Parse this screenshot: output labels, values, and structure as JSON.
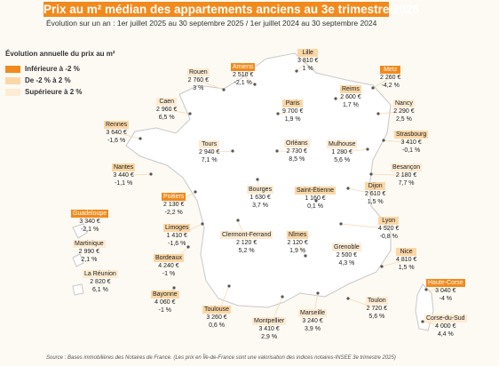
{
  "title": "Prix au m² médian des appartements anciens au 3e trimestre 2025",
  "subtitle": "Évolution sur un an : 1er juillet 2025 au 30 septembre 2025 / 1er juillet 2024 au 30 septembre 2024",
  "legend": {
    "title": "Évolution annuelle du prix au m²",
    "items": [
      {
        "label": "Inférieure à -2 %",
        "color": "#f18a1c"
      },
      {
        "label": "De -2 % à 2 %",
        "color": "#fbd7a6"
      },
      {
        "label": "Supérieure à 2 %",
        "color": "#fdebd2"
      }
    ]
  },
  "cities": [
    {
      "name": "Lille",
      "price": "3 810 €",
      "change": "1 %",
      "cat": 1
    },
    {
      "name": "Amiens",
      "price": "2 510 €",
      "change": "-2,1 %",
      "cat": 0
    },
    {
      "name": "Rouen",
      "price": "2 760 €",
      "change": "3 %",
      "cat": 2
    },
    {
      "name": "Metz",
      "price": "2 260 €",
      "change": "-4,2 %",
      "cat": 0
    },
    {
      "name": "Reims",
      "price": "2 600 €",
      "change": "1,7 %",
      "cat": 1
    },
    {
      "name": "Caen",
      "price": "2 960 €",
      "change": "6,5 %",
      "cat": 2
    },
    {
      "name": "Paris",
      "price": "9 700 €",
      "change": "1,9 %",
      "cat": 1
    },
    {
      "name": "Nancy",
      "price": "2 290 €",
      "change": "2,5 %",
      "cat": 2
    },
    {
      "name": "Rennes",
      "price": "3 640 €",
      "change": "-1,6 %",
      "cat": 1
    },
    {
      "name": "Strasbourg",
      "price": "3 410 €",
      "change": "-0,1 %",
      "cat": 1
    },
    {
      "name": "Tours",
      "price": "2 940 €",
      "change": "7,1 %",
      "cat": 2
    },
    {
      "name": "Orléans",
      "price": "2 730 €",
      "change": "8,5 %",
      "cat": 2
    },
    {
      "name": "Mulhouse",
      "price": "1 280 €",
      "change": "5,6 %",
      "cat": 2
    },
    {
      "name": "Nantes",
      "price": "3 440 €",
      "change": "-1,1 %",
      "cat": 1
    },
    {
      "name": "Besançon",
      "price": "2 180 €",
      "change": "7,7 %",
      "cat": 2
    },
    {
      "name": "Bourges",
      "price": "1 630 €",
      "change": "3,7 %",
      "cat": 2
    },
    {
      "name": "Poitiers",
      "price": "2 130 €",
      "change": "-2,2 %",
      "cat": 0
    },
    {
      "name": "Saint-Étienne",
      "price": "1 160 €",
      "change": "0,1 %",
      "cat": 1
    },
    {
      "name": "Dijon",
      "price": "2 610 €",
      "change": "1,5 %",
      "cat": 1
    },
    {
      "name": "Guadeloupe",
      "price": "3 340 €",
      "change": "-2,1 %",
      "cat": 0
    },
    {
      "name": "Limoges",
      "price": "1 410 €",
      "change": "-1,6 %",
      "cat": 1
    },
    {
      "name": "Clermont-Ferrand",
      "price": "2 120 €",
      "change": "5,2 %",
      "cat": 2
    },
    {
      "name": "Nîmes",
      "price": "2 120 €",
      "change": "1,9 %",
      "cat": 1
    },
    {
      "name": "Lyon",
      "price": "4 520 €",
      "change": "-0,8 %",
      "cat": 1
    },
    {
      "name": "Martinique",
      "price": "2 990 €",
      "change": "2,1 %",
      "cat": 2
    },
    {
      "name": "Grenoble",
      "price": "2 500 €",
      "change": "4,3 %",
      "cat": 2
    },
    {
      "name": "Bordeaux",
      "price": "4 240 €",
      "change": "-1 %",
      "cat": 1
    },
    {
      "name": "Nice",
      "price": "4 810 €",
      "change": "1,5 %",
      "cat": 1
    },
    {
      "name": "La Réunion",
      "price": "2 820 €",
      "change": "6,1 %",
      "cat": 2
    },
    {
      "name": "Haute-Corse",
      "price": "3 040 €",
      "change": "-4 %",
      "cat": 0
    },
    {
      "name": "Bayonne",
      "price": "4 060 €",
      "change": "-1 %",
      "cat": 1
    },
    {
      "name": "Toulouse",
      "price": "3 260 €",
      "change": "0,6 %",
      "cat": 1
    },
    {
      "name": "Marseille",
      "price": "3 240 €",
      "change": "3,9 %",
      "cat": 2
    },
    {
      "name": "Toulon",
      "price": "2 720 €",
      "change": "5,6 %",
      "cat": 2
    },
    {
      "name": "Montpellier",
      "price": "3 410 €",
      "change": "2,9 %",
      "cat": 2
    },
    {
      "name": "Corse-du-Sud",
      "price": "4 000 €",
      "change": "4,4 %",
      "cat": 2
    }
  ],
  "source": "Source : Bases immobilières des Notaires de France. (Les prix en Île-de-France sont une valorisation des indices notaires-INSEE 3e trimestre 2025)"
}
